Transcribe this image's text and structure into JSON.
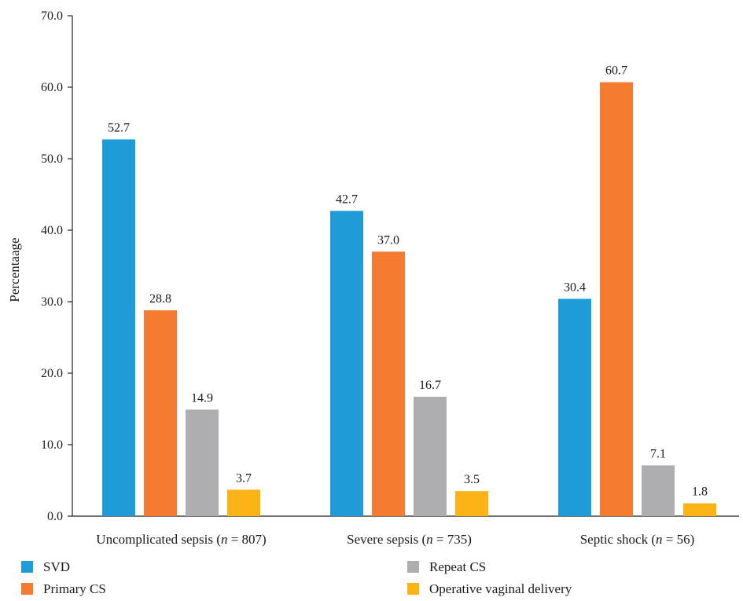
{
  "chart_data": {
    "type": "bar",
    "ylabel": "Percentaage",
    "ylim": [
      0,
      70
    ],
    "yticks": [
      "0.0",
      "10.0",
      "20.0",
      "30.0",
      "40.0",
      "50.0",
      "60.0",
      "70.0"
    ],
    "grid": false,
    "legend_position": "bottom",
    "categories": [
      {
        "pre": "Uncomplicated sepsis (",
        "n": "n",
        "post": " = 807)"
      },
      {
        "pre": "Severe sepsis (",
        "n": "n",
        "post": " = 735)"
      },
      {
        "pre": "Septic shock (",
        "n": "n",
        "post": " = 56)"
      }
    ],
    "series": [
      {
        "name": "SVD",
        "color": "#1f9bd7",
        "values": [
          52.7,
          42.7,
          30.4
        ],
        "labels": [
          "52.7",
          "42.7",
          "30.4"
        ]
      },
      {
        "name": "Primary CS",
        "color": "#f47b2f",
        "values": [
          28.8,
          37.0,
          60.7
        ],
        "labels": [
          "28.8",
          "37.0",
          "60.7"
        ]
      },
      {
        "name": "Repeat CS",
        "color": "#aeaeb0",
        "values": [
          14.9,
          16.7,
          7.1
        ],
        "labels": [
          "14.9",
          "16.7",
          "7.1"
        ]
      },
      {
        "name": "Operative vaginal delivery",
        "color": "#fbb316",
        "values": [
          3.7,
          3.5,
          1.8
        ],
        "labels": [
          "3.7",
          "3.5",
          "1.8"
        ]
      }
    ]
  }
}
